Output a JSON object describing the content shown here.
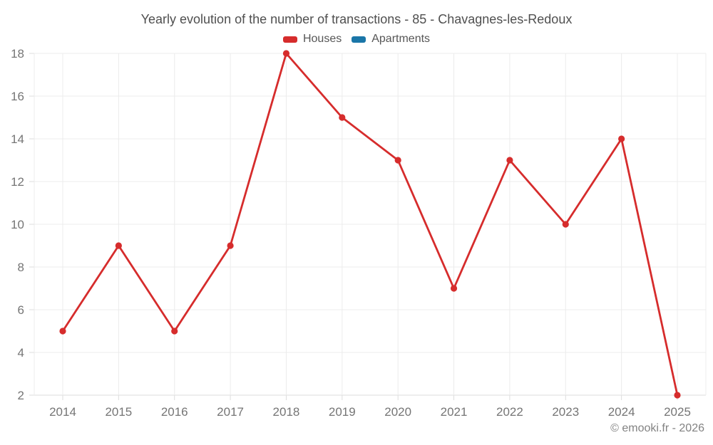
{
  "header": {
    "title": "Yearly evolution of the number of transactions - 85 - Chavagnes-les-Redoux",
    "legend": [
      {
        "label": "Houses",
        "color": "#d62c2c"
      },
      {
        "label": "Apartments",
        "color": "#1a76a8"
      }
    ]
  },
  "footer": {
    "copyright": "© emooki.fr - 2026"
  },
  "chart_data": {
    "type": "line",
    "title": "Yearly evolution of the number of transactions - 85 - Chavagnes-les-Redoux",
    "categories": [
      "2014",
      "2015",
      "2016",
      "2017",
      "2018",
      "2019",
      "2020",
      "2021",
      "2022",
      "2023",
      "2024",
      "2025"
    ],
    "series": [
      {
        "name": "Houses",
        "color": "#d62c2c",
        "values": [
          5,
          9,
          5,
          9,
          18,
          15,
          13,
          7,
          13,
          10,
          14,
          2
        ]
      },
      {
        "name": "Apartments",
        "color": "#1a76a8",
        "values": []
      }
    ],
    "xlabel": "",
    "ylabel": "",
    "ylim": [
      2,
      18
    ],
    "yticks": [
      2,
      4,
      6,
      8,
      10,
      12,
      14,
      16,
      18
    ],
    "grid": true,
    "legend_position": "top",
    "grid_color": "#ececec",
    "axis_color": "#dddddd",
    "label_color": "#757575"
  }
}
